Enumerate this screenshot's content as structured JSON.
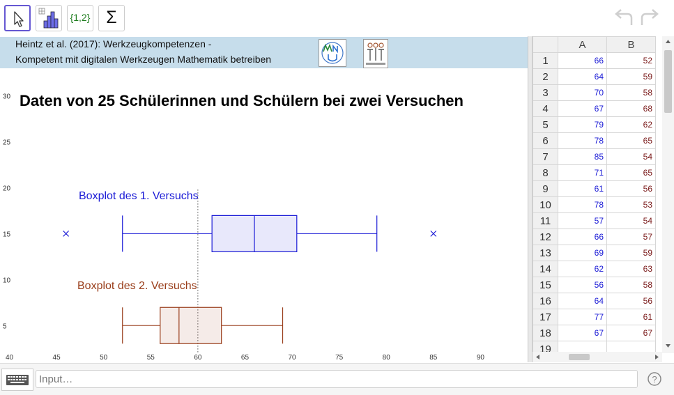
{
  "toolbar": {
    "tools": [
      {
        "name": "move-tool",
        "icon": "arrow-cursor-icon"
      },
      {
        "name": "one-variable-analysis-tool",
        "icon": "bar-chart-icon"
      },
      {
        "name": "create-list-tool",
        "icon": "list-icon",
        "label": "{1,2}"
      },
      {
        "name": "sum-tool",
        "icon": "sigma-icon",
        "label": "Σ"
      }
    ],
    "undo_icon": "undo-icon",
    "redo_icon": "redo-icon"
  },
  "banner": {
    "line1": "Heintz et al. (2017): Werkzeugkompetenzen -",
    "line2": "Kompetent mit digitalen Werkzeugen Mathematik betreiben"
  },
  "graphics": {
    "title": "Daten von 25 Schülerinnen und Schülern bei zwei Versuchen",
    "label1": "Boxplot des 1. Versuchs",
    "label2": "Boxplot des 2. Versuchs",
    "color1": "#1a1ad6",
    "color2": "#993d1a"
  },
  "chart_data": {
    "type": "boxplot",
    "x_ticks": [
      40,
      45,
      50,
      55,
      60,
      65,
      70,
      75,
      80,
      85,
      90
    ],
    "y_ticks": [
      5,
      10,
      15,
      20,
      25,
      30
    ],
    "xlim": [
      39,
      95
    ],
    "ylim": [
      1,
      33
    ],
    "reference_line_x": 60,
    "series": [
      {
        "name": "Boxplot des 1. Versuchs",
        "y": 15,
        "whisker_low": 52,
        "q1": 61.5,
        "median": 66,
        "q3": 70.5,
        "whisker_high": 79,
        "outliers": [
          46,
          85
        ],
        "color": "#1a1ad6"
      },
      {
        "name": "Boxplot des 2. Versuchs",
        "y": 5,
        "whisker_low": 52,
        "q1": 56,
        "median": 58,
        "q3": 62.5,
        "whisker_high": 69,
        "outliers": [],
        "color": "#993d1a"
      }
    ]
  },
  "spreadsheet": {
    "columns": [
      "A",
      "B"
    ],
    "rows": [
      {
        "n": "1",
        "a": "66",
        "b": "52"
      },
      {
        "n": "2",
        "a": "64",
        "b": "59"
      },
      {
        "n": "3",
        "a": "70",
        "b": "58"
      },
      {
        "n": "4",
        "a": "67",
        "b": "68"
      },
      {
        "n": "5",
        "a": "79",
        "b": "62"
      },
      {
        "n": "6",
        "a": "78",
        "b": "65"
      },
      {
        "n": "7",
        "a": "85",
        "b": "54"
      },
      {
        "n": "8",
        "a": "71",
        "b": "65"
      },
      {
        "n": "9",
        "a": "61",
        "b": "56"
      },
      {
        "n": "10",
        "a": "78",
        "b": "53"
      },
      {
        "n": "11",
        "a": "57",
        "b": "54"
      },
      {
        "n": "12",
        "a": "66",
        "b": "57"
      },
      {
        "n": "13",
        "a": "69",
        "b": "59"
      },
      {
        "n": "14",
        "a": "62",
        "b": "63"
      },
      {
        "n": "15",
        "a": "56",
        "b": "58"
      },
      {
        "n": "16",
        "a": "64",
        "b": "56"
      },
      {
        "n": "17",
        "a": "77",
        "b": "61"
      },
      {
        "n": "18",
        "a": "67",
        "b": "67"
      },
      {
        "n": "19",
        "a": "",
        "b": ""
      }
    ]
  },
  "input": {
    "placeholder": "Input…",
    "keyboard_icon": "keyboard-icon",
    "help_icon": "help-icon"
  }
}
